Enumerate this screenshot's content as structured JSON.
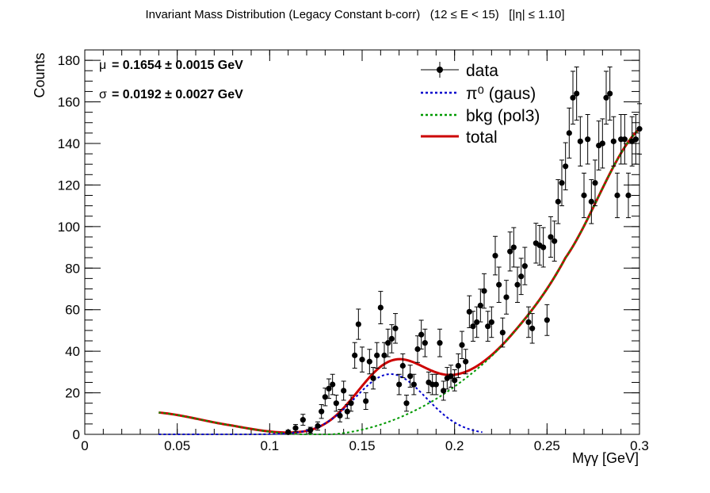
{
  "title": "Invariant Mass Distribution (Legacy Constant b-corr)   (12 ≤ E < 15)   [|η| ≤ 1.10]",
  "fit_params": {
    "mu_symbol": "μ",
    "mu_text": "= 0.1654  ± 0.0015 GeV",
    "sigma_symbol": "σ",
    "sigma_text": "= 0.0192  ± 0.0027 GeV"
  },
  "chart_data": {
    "type": "scatter",
    "xlabel": "Mγγ  [GeV]",
    "ylabel": "Counts",
    "xlim": [
      0,
      0.3
    ],
    "ylim": [
      0,
      185
    ],
    "x_ticks": [
      0,
      0.05,
      0.1,
      0.15,
      0.2,
      0.25,
      0.3
    ],
    "x_tick_labels": [
      "0",
      "0.05",
      "0.1",
      "0.15",
      "0.2",
      "0.25",
      "0.3"
    ],
    "y_ticks": [
      0,
      20,
      40,
      60,
      80,
      100,
      120,
      140,
      160,
      180
    ],
    "y_tick_labels": [
      "0",
      "20",
      "40",
      "60",
      "80",
      "100",
      "120",
      "140",
      "160",
      "180"
    ],
    "legend": {
      "position": "top-right",
      "entries": [
        {
          "label": "data",
          "style": "marker",
          "color": "#000000"
        },
        {
          "label": "π⁰ (gaus)",
          "style": "dotted",
          "color": "#0000cc"
        },
        {
          "label": "bkg (pol3)",
          "style": "dotted",
          "color": "#009900"
        },
        {
          "label": "total",
          "style": "solid",
          "color": "#cc0000"
        }
      ]
    },
    "data_points": {
      "x": [
        0.11,
        0.114,
        0.118,
        0.122,
        0.126,
        0.128,
        0.13,
        0.132,
        0.134,
        0.136,
        0.138,
        0.14,
        0.142,
        0.144,
        0.146,
        0.148,
        0.15,
        0.152,
        0.154,
        0.156,
        0.158,
        0.16,
        0.162,
        0.164,
        0.166,
        0.168,
        0.17,
        0.172,
        0.174,
        0.176,
        0.178,
        0.18,
        0.182,
        0.184,
        0.186,
        0.188,
        0.19,
        0.192,
        0.194,
        0.196,
        0.198,
        0.2,
        0.202,
        0.204,
        0.206,
        0.208,
        0.21,
        0.212,
        0.214,
        0.216,
        0.218,
        0.22,
        0.222,
        0.224,
        0.226,
        0.228,
        0.23,
        0.232,
        0.234,
        0.236,
        0.238,
        0.24,
        0.242,
        0.244,
        0.246,
        0.248,
        0.25,
        0.252,
        0.254,
        0.256,
        0.258,
        0.26,
        0.262,
        0.264,
        0.266,
        0.268,
        0.27,
        0.272,
        0.274,
        0.276,
        0.278,
        0.28,
        0.282,
        0.284,
        0.286,
        0.288,
        0.29,
        0.292,
        0.294,
        0.296,
        0.298,
        0.3
      ],
      "y": [
        1,
        3,
        7,
        2,
        4,
        11,
        18,
        22,
        24,
        15,
        9,
        21,
        11,
        15,
        38,
        53,
        36,
        16,
        35,
        27,
        38,
        61,
        38,
        44,
        46,
        51,
        24,
        33,
        15,
        28,
        24,
        41,
        48,
        44,
        25,
        24,
        24,
        44,
        21,
        27,
        28,
        26,
        33,
        43,
        35,
        59,
        52,
        54,
        62,
        69,
        52,
        54,
        86,
        72,
        49,
        66,
        88,
        90,
        72,
        76,
        81,
        54,
        51,
        92,
        91,
        90,
        55,
        95,
        93,
        112,
        121,
        129,
        145,
        162,
        164,
        141,
        115,
        142,
        112,
        121,
        139,
        140,
        162,
        164,
        141,
        115,
        142,
        142,
        115,
        141,
        142,
        147
      ],
      "yerr_note": "sqrt(N) error bars"
    },
    "fit_curves": {
      "x_range": [
        0.04,
        0.3
      ],
      "gaus": {
        "amplitude": 29.0,
        "mean": 0.1654,
        "sigma": 0.0192
      },
      "pol3_bkg": {
        "knots_x": [
          0.04,
          0.08,
          0.11,
          0.14,
          0.17,
          0.2,
          0.23,
          0.26,
          0.3
        ],
        "knots_y": [
          10.5,
          4.2,
          0.4,
          0.6,
          8.0,
          23.0,
          47.0,
          85.0,
          147.0
        ]
      }
    }
  }
}
